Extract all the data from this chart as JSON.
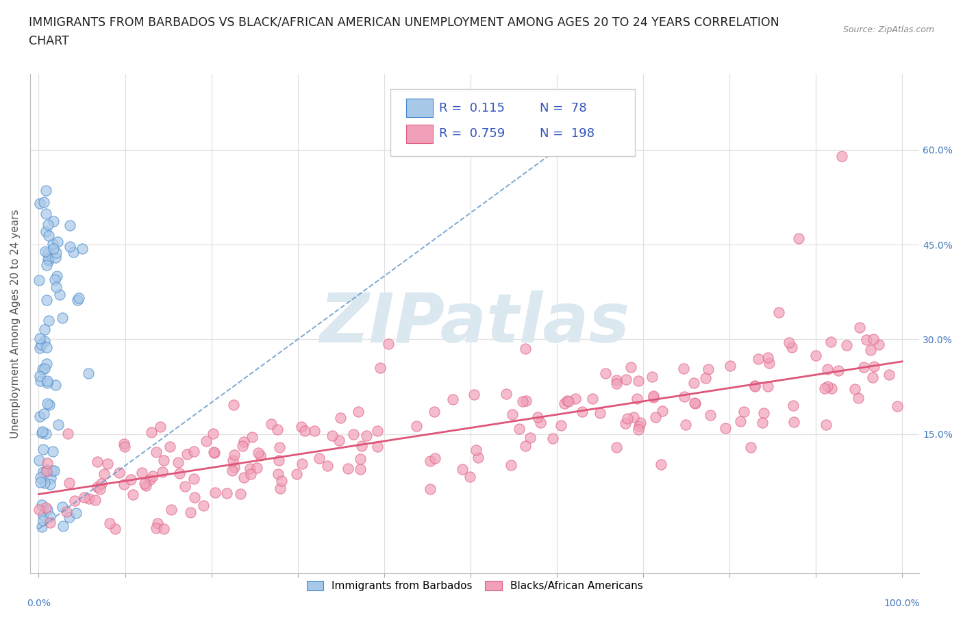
{
  "title_line1": "IMMIGRANTS FROM BARBADOS VS BLACK/AFRICAN AMERICAN UNEMPLOYMENT AMONG AGES 20 TO 24 YEARS CORRELATION",
  "title_line2": "CHART",
  "source_text": "Source: ZipAtlas.com",
  "ylabel": "Unemployment Among Ages 20 to 24 years",
  "xlim": [
    -0.01,
    1.02
  ],
  "ylim": [
    -0.07,
    0.72
  ],
  "right_ytick_labels": [
    "15.0%",
    "30.0%",
    "45.0%",
    "60.0%"
  ],
  "right_ytick_values": [
    0.15,
    0.3,
    0.45,
    0.6
  ],
  "xtick_minor_values": [
    0.0,
    0.1,
    0.2,
    0.3,
    0.4,
    0.5,
    0.6,
    0.7,
    0.8,
    0.9,
    1.0
  ],
  "xtick_label_left": "0.0%",
  "xtick_label_right": "100.0%",
  "blue_scatter_color": "#a8c8e8",
  "blue_edge_color": "#4488cc",
  "pink_scatter_color": "#f0a0b8",
  "pink_edge_color": "#e06080",
  "blue_trend_color": "#6699cc",
  "pink_trend_color": "#dd5577",
  "watermark_text": "ZIPatlas",
  "watermark_color": "#dce8f0",
  "background_color": "#ffffff",
  "grid_color": "#e0e0e0",
  "title_color": "#222222",
  "source_color": "#888888",
  "ylabel_color": "#555555",
  "rtick_color": "#4477bb",
  "title_fontsize": 12.5,
  "axis_label_fontsize": 11,
  "tick_fontsize": 10,
  "legend_fontsize": 13,
  "blue_R": 0.115,
  "blue_N": 78,
  "pink_R": 0.759,
  "pink_N": 198,
  "blue_trend_slope": 1.0,
  "blue_trend_intercept": 0.0,
  "blue_trend_x_end": 0.63,
  "pink_trend_slope": 0.21,
  "pink_trend_intercept": 0.055,
  "pink_trend_x_end": 1.0
}
